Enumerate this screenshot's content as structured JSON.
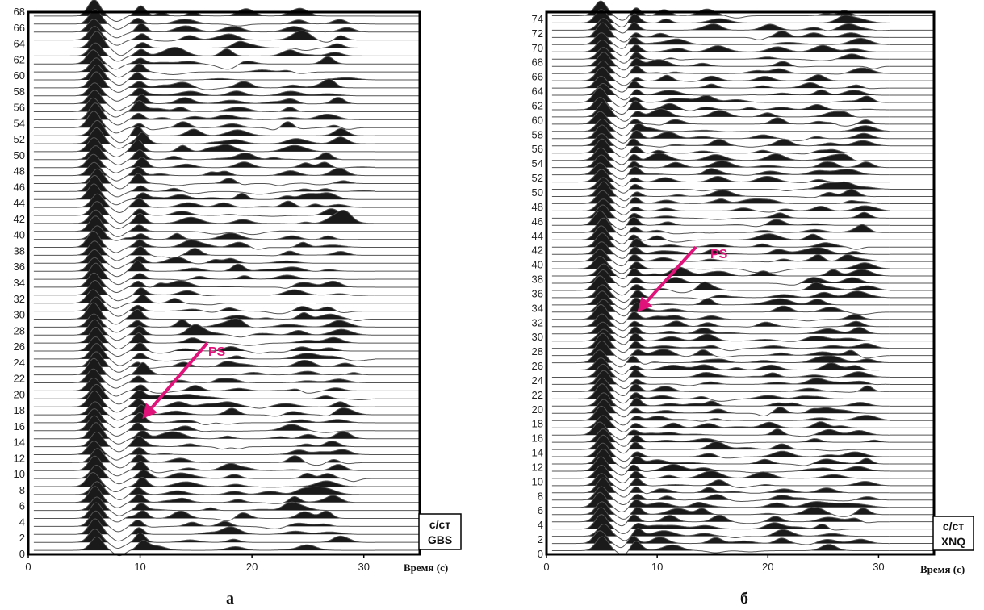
{
  "chart_data": [
    {
      "type": "seismic-wiggle",
      "panel_letter": "а",
      "xlabel": "Время (с)",
      "xlim": [
        0,
        35
      ],
      "xticks": [
        0,
        10,
        20,
        30
      ],
      "ylim": [
        0,
        68
      ],
      "ytick_step": 2,
      "trace_count": 68,
      "annotation": "PS",
      "station_line1": "с/ст",
      "station_line2": "GBS",
      "main_arrival_time": 6.0,
      "ps_arrival_time": 10.0,
      "arrow": {
        "from": [
          16.0,
          26.5
        ],
        "to": [
          10.2,
          17.0
        ]
      },
      "phase_times": [
        14.0,
        18.5,
        24.0,
        27.5
      ],
      "trace_end_time": 31.0
    },
    {
      "type": "seismic-wiggle",
      "panel_letter": "б",
      "xlabel": "Время (с)",
      "xlim": [
        0,
        35
      ],
      "xticks": [
        0,
        10,
        20,
        30
      ],
      "ylim": [
        0,
        75
      ],
      "ytick_step": 2,
      "trace_count": 75,
      "annotation": "PS",
      "station_line1": "с/ст",
      "station_line2": "XNQ",
      "main_arrival_time": 5.0,
      "ps_arrival_time": 8.0,
      "arrow": {
        "from": [
          13.5,
          42.5
        ],
        "to": [
          8.2,
          33.5
        ]
      },
      "phase_times": [
        11.0,
        15.0,
        20.5,
        25.0,
        28.0
      ],
      "trace_end_time": 31.0
    }
  ],
  "colors": {
    "trace": "#555555",
    "fill": "#1a1a1a",
    "arrow": "#e0137a",
    "frame": "#000000"
  }
}
